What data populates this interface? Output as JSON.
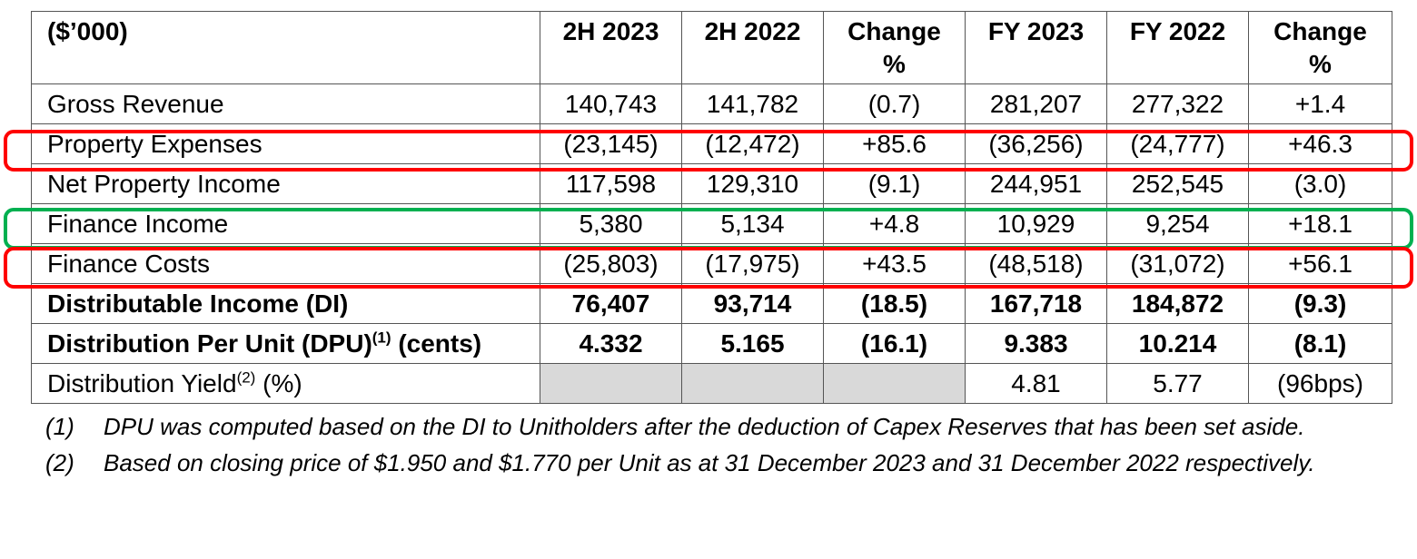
{
  "table": {
    "header": {
      "label": "($’000)",
      "columns": [
        {
          "line1": "2H 2023",
          "line2": ""
        },
        {
          "line1": "2H 2022",
          "line2": ""
        },
        {
          "line1": "Change",
          "line2": "%"
        },
        {
          "line1": "FY 2023",
          "line2": ""
        },
        {
          "line1": "FY 2022",
          "line2": ""
        },
        {
          "line1": "Change",
          "line2": "%"
        }
      ]
    },
    "rows": [
      {
        "label": "Gross Revenue",
        "values": [
          "140,743",
          "141,782",
          "(0.7)",
          "281,207",
          "277,322",
          "+1.4"
        ]
      },
      {
        "label": "Property Expenses",
        "values": [
          "(23,145)",
          "(12,472)",
          "+85.6",
          "(36,256)",
          "(24,777)",
          "+46.3"
        ]
      },
      {
        "label": "Net Property Income",
        "values": [
          "117,598",
          "129,310",
          "(9.1)",
          "244,951",
          "252,545",
          "(3.0)"
        ]
      },
      {
        "label": "Finance Income",
        "values": [
          "5,380",
          "5,134",
          "+4.8",
          "10,929",
          "9,254",
          "+18.1"
        ]
      },
      {
        "label": "Finance Costs",
        "values": [
          "(25,803)",
          "(17,975)",
          "+43.5",
          "(48,518)",
          "(31,072)",
          "+56.1"
        ]
      },
      {
        "label": "Distributable Income (DI)",
        "values": [
          "76,407",
          "93,714",
          "(18.5)",
          "167,718",
          "184,872",
          "(9.3)"
        ]
      },
      {
        "label_main": "Distribution Per Unit (DPU)",
        "label_sup": "(1)",
        "label_tail": " (cents)",
        "values": [
          "4.332",
          "5.165",
          "(16.1)",
          "9.383",
          "10.214",
          "(8.1)"
        ]
      },
      {
        "label_main": "Distribution Yield",
        "label_sup": "(2)",
        "label_tail": " (%)",
        "values": [
          "",
          "",
          "",
          "4.81",
          "5.77",
          "(96bps)"
        ]
      }
    ]
  },
  "highlights": {
    "property_expenses": "#ff0000",
    "finance_income": "#00b050",
    "finance_costs": "#ff0000"
  },
  "footnotes": [
    {
      "num": "(1)",
      "text": "DPU was computed based on the DI to Unitholders after the deduction of Capex Reserves that has been set aside."
    },
    {
      "num": "(2)",
      "text": "Based on closing price of $1.950 and $1.770 per Unit as at 31 December 2023 and 31 December 2022 respectively."
    }
  ]
}
